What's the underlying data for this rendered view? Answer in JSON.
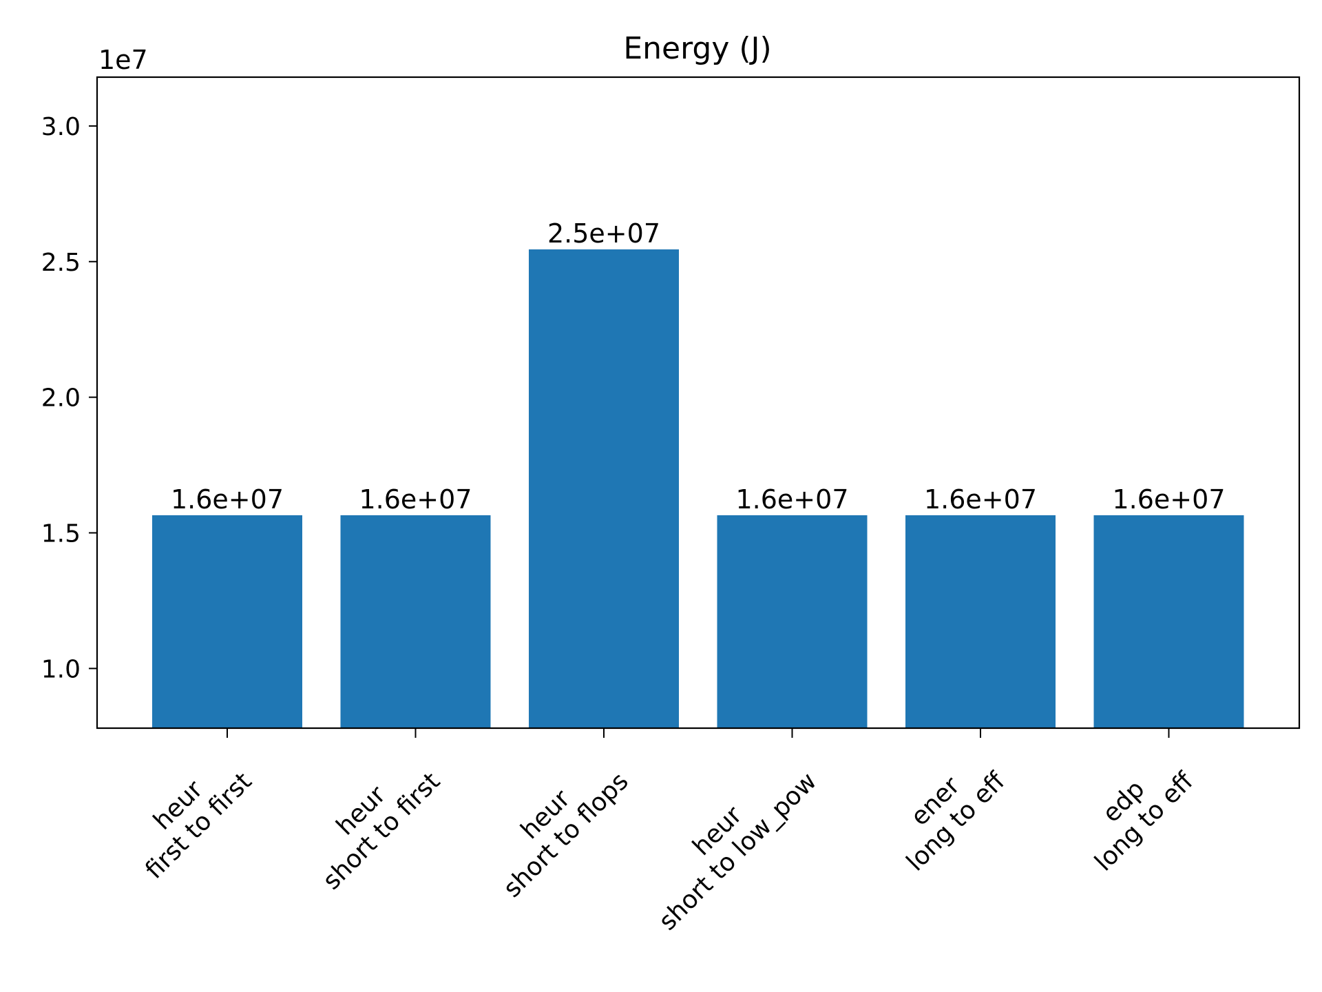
{
  "chart_data": {
    "type": "bar",
    "title": "Energy (J)",
    "xlabel": "",
    "ylabel": "",
    "categories": [
      [
        "heur",
        "first to first"
      ],
      [
        "heur",
        "short to first"
      ],
      [
        "heur",
        "short to flops"
      ],
      [
        "heur",
        "short to low_pow"
      ],
      [
        "ener",
        "long to eff"
      ],
      [
        "edp",
        "long to eff"
      ]
    ],
    "values": [
      15650000,
      15650000,
      25450000,
      15650000,
      15650000,
      15650000
    ],
    "bar_labels": [
      "1.6e+07",
      "1.6e+07",
      "2.5e+07",
      "1.6e+07",
      "1.6e+07",
      "1.6e+07"
    ],
    "ylim": [
      7800000,
      31800000
    ],
    "yticks": [
      10000000,
      15000000,
      20000000,
      25000000,
      30000000
    ],
    "ytick_labels": [
      "1.0",
      "1.5",
      "2.0",
      "2.5",
      "3.0"
    ],
    "y_multiplier": "1e7",
    "xtick_rotation": 45,
    "bar_color": "#1f77b4",
    "grid": false,
    "legend": "none"
  }
}
